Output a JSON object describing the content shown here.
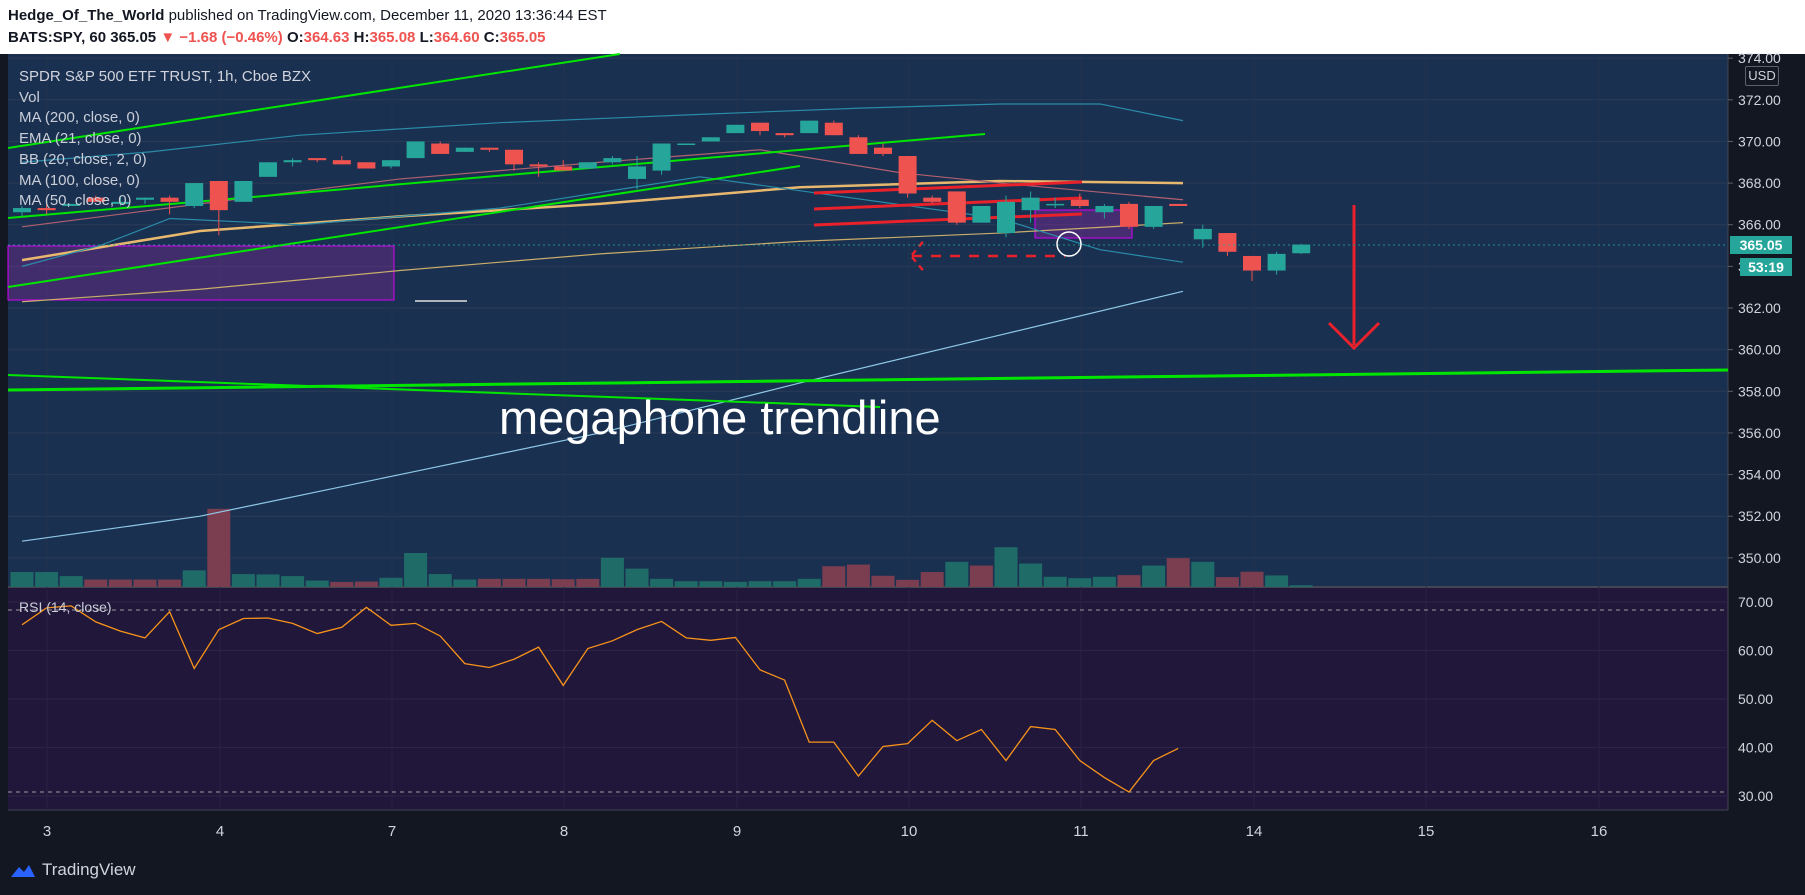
{
  "header": {
    "author": "Hedge_Of_The_World",
    "published_text": "published on TradingView.com, December 11, 2020 13:36:44 EST",
    "symbol": "BATS:SPY, 60",
    "last": "365.05",
    "change_arrow": "▼",
    "change": "−1.68 (−0.46%)",
    "o_label": "O:",
    "o": "364.63",
    "h_label": "H:",
    "h": "365.08",
    "l_label": "L:",
    "l": "364.60",
    "c_label": "C:",
    "c": "365.05"
  },
  "legend": {
    "title": "SPDR S&P 500 ETF TRUST, 1h, Cboe BZX",
    "items": [
      "Vol",
      "MA (200, close, 0)",
      "EMA (21, close, 0)",
      "BB (20, close, 2, 0)",
      "MA (100, close, 0)",
      "MA (50, close, 0)"
    ]
  },
  "price_axis": {
    "currency": "USD",
    "current_price": "365.05",
    "countdown": "53:19"
  },
  "annotation": "megaphone trendline",
  "rsi": {
    "label": "RSI (14, close)"
  },
  "footer": {
    "brand": "TradingView"
  },
  "colors": {
    "up": "#26a69a",
    "down": "#ef5350",
    "trend_line": "#00e600",
    "drawing_red": "#e8212b",
    "ma200": "#8fc9e8",
    "ma100": "#e8c98a",
    "rsi_line": "#f7931a",
    "rsi_bg": "#21173a",
    "background": "#1a3050"
  },
  "chart_data": [
    {
      "type": "candlestick",
      "title": "SPDR S&P 500 ETF TRUST, 1h, Cboe BZX",
      "ylim": [
        348.6,
        374.2
      ],
      "yticks": [
        "374.00",
        "372.00",
        "370.00",
        "368.00",
        "366.00",
        "364.00",
        "362.00",
        "360.00",
        "358.00",
        "356.00",
        "354.00",
        "352.00",
        "350.00"
      ],
      "x_tick_labels": [
        "3",
        "4",
        "7",
        "8",
        "9",
        "10",
        "11",
        "14",
        "15",
        "16"
      ],
      "ohlc": [
        [
          366.6,
          366.9,
          366.4,
          366.8
        ],
        [
          366.8,
          367.0,
          366.5,
          366.7
        ],
        [
          366.9,
          367.0,
          366.9,
          367.0
        ],
        [
          367.3,
          367.4,
          367.1,
          367.1
        ],
        [
          367.0,
          367.4,
          366.9,
          367.1
        ],
        [
          367.2,
          367.3,
          367.0,
          367.3
        ],
        [
          367.3,
          367.4,
          366.5,
          367.1
        ],
        [
          366.9,
          368.0,
          366.8,
          368.0
        ],
        [
          368.1,
          368.1,
          365.5,
          366.7
        ],
        [
          367.1,
          368.1,
          367.1,
          368.1
        ],
        [
          368.3,
          369.0,
          368.3,
          369.0
        ],
        [
          369.0,
          369.2,
          368.8,
          369.1
        ],
        [
          369.2,
          369.2,
          369.0,
          369.1
        ],
        [
          369.1,
          369.3,
          368.9,
          368.9
        ],
        [
          369.0,
          369.0,
          368.7,
          368.7
        ],
        [
          368.8,
          369.1,
          368.7,
          369.1
        ],
        [
          369.2,
          370.0,
          369.2,
          370.0
        ],
        [
          369.9,
          370.0,
          369.4,
          369.4
        ],
        [
          369.5,
          369.7,
          369.5,
          369.7
        ],
        [
          369.7,
          369.7,
          369.5,
          369.6
        ],
        [
          369.6,
          369.6,
          368.6,
          368.9
        ],
        [
          368.9,
          369.0,
          368.3,
          368.8
        ],
        [
          368.8,
          369.1,
          368.6,
          368.6
        ],
        [
          368.7,
          369.0,
          368.7,
          369.0
        ],
        [
          369.0,
          369.3,
          368.9,
          369.2
        ],
        [
          368.2,
          369.3,
          367.7,
          368.8
        ],
        [
          368.6,
          369.9,
          368.4,
          369.9
        ],
        [
          369.9,
          369.9,
          369.9,
          369.9
        ],
        [
          370.0,
          370.2,
          370.0,
          370.2
        ],
        [
          370.4,
          370.8,
          370.4,
          370.8
        ],
        [
          370.9,
          370.9,
          370.3,
          370.5
        ],
        [
          370.4,
          370.4,
          370.2,
          370.3
        ],
        [
          370.4,
          371.0,
          370.4,
          371.0
        ],
        [
          370.9,
          371.0,
          370.3,
          370.3
        ],
        [
          370.2,
          370.3,
          369.4,
          369.4
        ],
        [
          369.7,
          369.9,
          369.3,
          369.4
        ],
        [
          369.3,
          369.3,
          367.3,
          367.5
        ],
        [
          367.3,
          367.4,
          367.0,
          367.1
        ],
        [
          367.6,
          367.6,
          366.0,
          366.1
        ],
        [
          366.1,
          366.9,
          366.1,
          366.9
        ],
        [
          365.6,
          367.4,
          365.4,
          367.1
        ],
        [
          366.7,
          367.6,
          366.1,
          367.3
        ],
        [
          367.0,
          367.3,
          366.8,
          367.0
        ],
        [
          367.2,
          367.5,
          366.8,
          366.9
        ],
        [
          366.6,
          367.0,
          366.3,
          366.9
        ],
        [
          367.0,
          367.1,
          365.8,
          365.9
        ],
        [
          365.9,
          366.9,
          365.8,
          366.9
        ],
        [
          367.0,
          367.0,
          366.9,
          366.9
        ],
        [
          365.3,
          366.0,
          364.9,
          365.8
        ],
        [
          365.6,
          365.6,
          364.5,
          364.7
        ],
        [
          364.5,
          364.5,
          363.3,
          363.8
        ],
        [
          363.8,
          364.7,
          363.6,
          364.6
        ],
        [
          364.63,
          365.08,
          364.6,
          365.05
        ]
      ],
      "volume_levels": [
        0.44,
        0.44,
        0.32,
        0.22,
        0.22,
        0.22,
        0.22,
        0.49,
        2.3,
        0.38,
        0.37,
        0.32,
        0.19,
        0.15,
        0.16,
        0.27,
        1.0,
        0.38,
        0.22,
        0.24,
        0.24,
        0.24,
        0.23,
        0.24,
        0.86,
        0.54,
        0.24,
        0.17,
        0.17,
        0.15,
        0.17,
        0.17,
        0.24,
        0.61,
        0.66,
        0.33,
        0.21,
        0.44,
        0.74,
        0.63,
        1.17,
        0.69,
        0.3,
        0.26,
        0.3,
        0.35,
        0.63,
        0.85,
        0.74,
        0.29,
        0.45,
        0.34,
        0.05
      ],
      "volume_directions": [
        "up",
        "up",
        "up",
        "down",
        "down",
        "down",
        "down",
        "up",
        "down",
        "up",
        "up",
        "up",
        "up",
        "down",
        "down",
        "up",
        "up",
        "up",
        "up",
        "down",
        "down",
        "down",
        "down",
        "down",
        "up",
        "up",
        "up",
        "up",
        "up",
        "up",
        "up",
        "up",
        "up",
        "down",
        "down",
        "down",
        "down",
        "down",
        "up",
        "down",
        "up",
        "up",
        "up",
        "up",
        "up",
        "down",
        "up",
        "down",
        "up",
        "down",
        "down",
        "up",
        "up"
      ]
    },
    {
      "type": "line",
      "title": "RSI (14, close)",
      "ylim": [
        27.1,
        73.1
      ],
      "yticks": [
        "70.00",
        "60.00",
        "50.00",
        "40.00",
        "30.00"
      ],
      "levels": [
        70,
        30
      ],
      "values": [
        65.3,
        68.8,
        69.2,
        65.9,
        64.0,
        62.6,
        68.0,
        56.3,
        64.3,
        66.6,
        66.7,
        65.6,
        63.5,
        64.8,
        68.9,
        65.2,
        65.6,
        63.0,
        57.3,
        56.5,
        58.2,
        60.7,
        52.8,
        60.4,
        62.0,
        64.3,
        66.0,
        62.6,
        62.1,
        62.7,
        56.0,
        53.9,
        41.1,
        41.1,
        34.1,
        40.2,
        40.8,
        45.6,
        41.4,
        43.7,
        37.3,
        44.3,
        43.7,
        37.3,
        33.8,
        30.8,
        37.3,
        39.8
      ]
    }
  ]
}
